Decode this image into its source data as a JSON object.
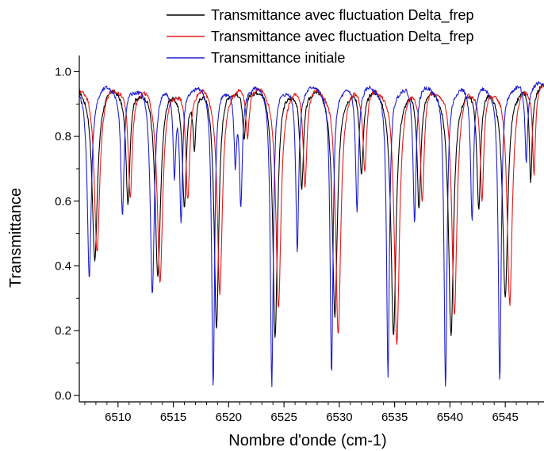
{
  "chart_data": {
    "type": "line",
    "title": "",
    "xlabel": "Nombre d'onde (cm-1)",
    "ylabel": "Transmittance",
    "xlim": [
      6506.5,
      6548.5
    ],
    "ylim": [
      -0.02,
      1.05
    ],
    "xticks": [
      6510,
      6515,
      6520,
      6525,
      6530,
      6535,
      6540,
      6545
    ],
    "yticks": [
      0.0,
      0.2,
      0.4,
      0.6,
      0.8,
      1.0
    ],
    "ytick_labels": [
      "0.0",
      "0.2",
      "0.4",
      "0.6",
      "0.8",
      "1.0"
    ],
    "grid": false,
    "legend_position": "top-right",
    "series": [
      {
        "name": "Transmittance avec fluctuation Delta_frep",
        "color": "#000000",
        "baseline": 0.965,
        "lines": [
          {
            "center": 6507.9,
            "min": 0.42,
            "width": 0.3
          },
          {
            "center": 6510.9,
            "min": 0.6,
            "width": 0.22
          },
          {
            "center": 6513.6,
            "min": 0.38,
            "width": 0.3
          },
          {
            "center": 6516.0,
            "min": 0.6,
            "width": 0.22
          },
          {
            "center": 6516.9,
            "min": 0.8,
            "width": 0.15
          },
          {
            "center": 6518.9,
            "min": 0.22,
            "width": 0.25
          },
          {
            "center": 6521.4,
            "min": 0.8,
            "width": 0.18
          },
          {
            "center": 6524.2,
            "min": 0.19,
            "width": 0.25
          },
          {
            "center": 6526.6,
            "min": 0.65,
            "width": 0.2
          },
          {
            "center": 6529.6,
            "min": 0.25,
            "width": 0.28
          },
          {
            "center": 6532.0,
            "min": 0.7,
            "width": 0.2
          },
          {
            "center": 6534.9,
            "min": 0.19,
            "width": 0.28
          },
          {
            "center": 6537.2,
            "min": 0.6,
            "width": 0.2
          },
          {
            "center": 6540.1,
            "min": 0.19,
            "width": 0.28
          },
          {
            "center": 6542.6,
            "min": 0.6,
            "width": 0.2
          },
          {
            "center": 6545.0,
            "min": 0.3,
            "width": 0.28
          },
          {
            "center": 6547.3,
            "min": 0.67,
            "width": 0.15
          }
        ]
      },
      {
        "name": "Transmittance avec fluctuation Delta_frep",
        "color": "#e31a1c",
        "baseline": 0.97,
        "lines": [
          {
            "center": 6508.1,
            "min": 0.45,
            "width": 0.3
          },
          {
            "center": 6511.1,
            "min": 0.62,
            "width": 0.22
          },
          {
            "center": 6513.8,
            "min": 0.36,
            "width": 0.3
          },
          {
            "center": 6516.3,
            "min": 0.62,
            "width": 0.22
          },
          {
            "center": 6519.2,
            "min": 0.32,
            "width": 0.28
          },
          {
            "center": 6521.7,
            "min": 0.82,
            "width": 0.18
          },
          {
            "center": 6524.5,
            "min": 0.27,
            "width": 0.28
          },
          {
            "center": 6526.9,
            "min": 0.67,
            "width": 0.2
          },
          {
            "center": 6529.9,
            "min": 0.19,
            "width": 0.28
          },
          {
            "center": 6532.3,
            "min": 0.72,
            "width": 0.2
          },
          {
            "center": 6535.2,
            "min": 0.17,
            "width": 0.28
          },
          {
            "center": 6537.5,
            "min": 0.62,
            "width": 0.2
          },
          {
            "center": 6540.4,
            "min": 0.26,
            "width": 0.28
          },
          {
            "center": 6542.9,
            "min": 0.62,
            "width": 0.2
          },
          {
            "center": 6545.4,
            "min": 0.29,
            "width": 0.28
          },
          {
            "center": 6547.6,
            "min": 0.7,
            "width": 0.15
          }
        ]
      },
      {
        "name": "Transmittance initiale",
        "color": "#1f1fd2",
        "baseline": 0.965,
        "lines": [
          {
            "center": 6507.4,
            "min": 0.36,
            "width": 0.22
          },
          {
            "center": 6510.4,
            "min": 0.56,
            "width": 0.18
          },
          {
            "center": 6513.1,
            "min": 0.32,
            "width": 0.22
          },
          {
            "center": 6515.1,
            "min": 0.71,
            "width": 0.14
          },
          {
            "center": 6515.7,
            "min": 0.55,
            "width": 0.16
          },
          {
            "center": 6518.6,
            "min": 0.03,
            "width": 0.16
          },
          {
            "center": 6520.6,
            "min": 0.74,
            "width": 0.14
          },
          {
            "center": 6521.1,
            "min": 0.6,
            "width": 0.16
          },
          {
            "center": 6523.9,
            "min": 0.03,
            "width": 0.16
          },
          {
            "center": 6526.2,
            "min": 0.45,
            "width": 0.16
          },
          {
            "center": 6529.3,
            "min": 0.06,
            "width": 0.16
          },
          {
            "center": 6531.6,
            "min": 0.58,
            "width": 0.16
          },
          {
            "center": 6534.4,
            "min": 0.06,
            "width": 0.16
          },
          {
            "center": 6536.8,
            "min": 0.55,
            "width": 0.16
          },
          {
            "center": 6539.6,
            "min": 0.02,
            "width": 0.16
          },
          {
            "center": 6542.0,
            "min": 0.55,
            "width": 0.16
          },
          {
            "center": 6544.5,
            "min": 0.04,
            "width": 0.16
          },
          {
            "center": 6546.9,
            "min": 0.73,
            "width": 0.14
          }
        ]
      }
    ]
  }
}
